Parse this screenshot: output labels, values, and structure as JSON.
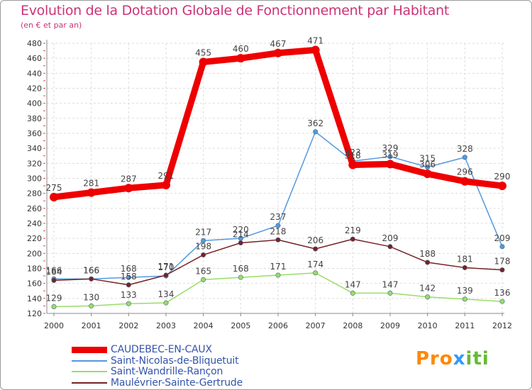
{
  "chart_data": {
    "type": "line",
    "title": "Evolution de la Dotation Globale de Fonctionnement par Habitant",
    "subtitle": "(en € et par an)",
    "xlabel": "",
    "ylabel": "",
    "ylim": [
      120,
      480
    ],
    "yticks": [
      120,
      140,
      160,
      180,
      200,
      220,
      240,
      260,
      280,
      300,
      320,
      340,
      360,
      380,
      400,
      420,
      440,
      460,
      480
    ],
    "grid": true,
    "legend_position": "bottom-left",
    "x": [
      "2000",
      "2001",
      "2002",
      "2003",
      "2004",
      "2005",
      "2006",
      "2007",
      "2008",
      "2009",
      "2010",
      "2011",
      "2012"
    ],
    "series": [
      {
        "name": "CAUDEBEC-EN-CAUX",
        "color": "#ee0000",
        "values": [
          275,
          281,
          287,
          291,
          455,
          460,
          467,
          471,
          318,
          319,
          306,
          296,
          290
        ],
        "labels": [
          "275",
          "281",
          "287",
          "291",
          "455",
          "460",
          "467",
          "471",
          "318",
          "319",
          "306",
          "296",
          "290"
        ]
      },
      {
        "name": "Saint-Nicolas-de-Bliquetuit",
        "color": "#5599dd",
        "values": [
          166,
          166,
          168,
          170,
          217,
          220,
          237,
          362,
          323,
          329,
          315,
          328,
          209
        ],
        "labels": [
          "166",
          "166",
          "168",
          "170",
          "217",
          "220",
          "237",
          "362",
          "323",
          "329",
          "315",
          "328",
          "209"
        ]
      },
      {
        "name": "Saint-Wandrille-Rançon",
        "color": "#99dd66",
        "values": [
          129,
          130,
          133,
          134,
          165,
          168,
          171,
          174,
          147,
          147,
          142,
          139,
          136
        ],
        "labels": [
          "129",
          "130",
          "133",
          "134",
          "165",
          "168",
          "171",
          "174",
          "147",
          "147",
          "142",
          "139",
          "136"
        ]
      },
      {
        "name": "Maulévrier-Sainte-Gertrude",
        "color": "#772222",
        "values": [
          164,
          166,
          158,
          171,
          198,
          214,
          218,
          206,
          219,
          209,
          188,
          181,
          178
        ],
        "labels": [
          "164",
          "166",
          "158",
          "171",
          "198",
          "214",
          "218",
          "206",
          "219",
          "209",
          "188",
          "181",
          "178"
        ]
      }
    ]
  },
  "logo": {
    "part1": "Pro",
    "part2": "x",
    "part3": "iti"
  }
}
